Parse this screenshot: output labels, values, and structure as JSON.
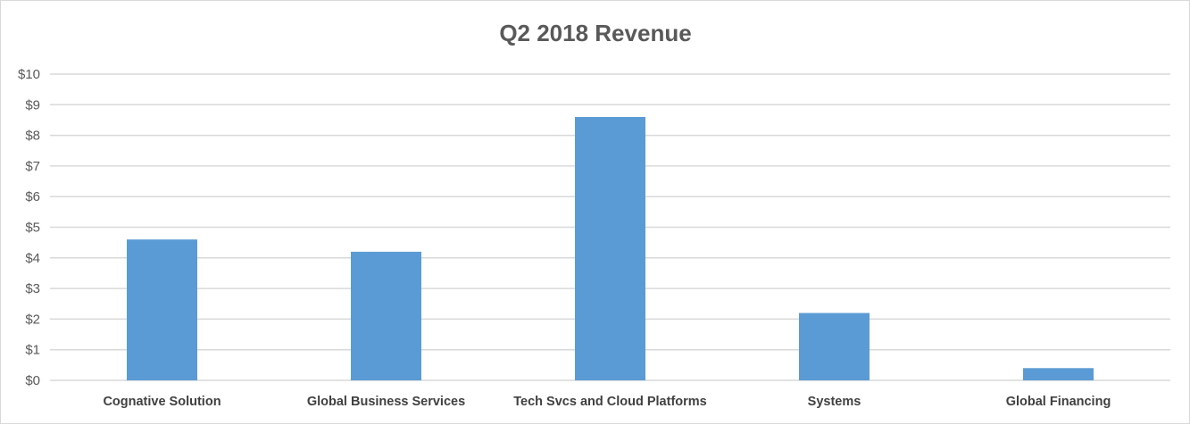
{
  "chart_data": {
    "type": "bar",
    "title": "Q2 2018 Revenue",
    "xlabel": "",
    "ylabel": "",
    "categories": [
      "Cognative Solution",
      "Global Business Services",
      "Tech Svcs and Cloud Platforms",
      "Systems",
      "Global Financing"
    ],
    "values": [
      4.6,
      4.2,
      8.6,
      2.2,
      0.4
    ],
    "ylim": [
      0,
      10
    ],
    "yticks": [
      0,
      1,
      2,
      3,
      4,
      5,
      6,
      7,
      8,
      9,
      10
    ],
    "ytick_labels": [
      "$0",
      "$1",
      "$2",
      "$3",
      "$4",
      "$5",
      "$6",
      "$7",
      "$8",
      "$9",
      "$10"
    ],
    "grid": true,
    "legend": "none",
    "bar_color": "#5b9bd5"
  }
}
